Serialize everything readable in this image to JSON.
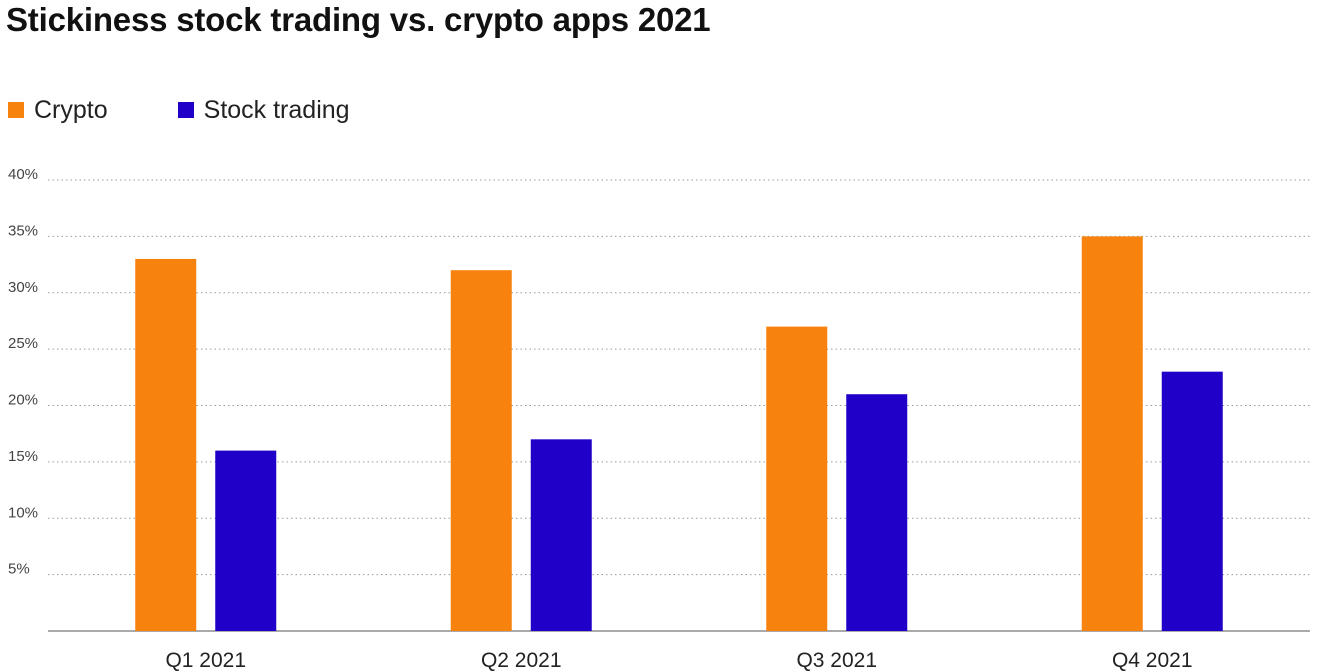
{
  "chart_data": {
    "type": "bar",
    "title": "Stickiness stock trading vs. crypto apps 2021",
    "xlabel": "",
    "ylabel": "",
    "categories": [
      "Q1 2021",
      "Q2 2021",
      "Q3 2021",
      "Q4 2021"
    ],
    "series": [
      {
        "name": "Crypto",
        "color": "#f7820d",
        "values": [
          33,
          32,
          27,
          35
        ]
      },
      {
        "name": "Stock trading",
        "color": "#2000c8",
        "values": [
          16,
          17,
          21,
          23
        ]
      }
    ],
    "ylim": [
      0,
      40
    ],
    "yticks": [
      5,
      10,
      15,
      20,
      25,
      30,
      35,
      40
    ],
    "ytick_labels": [
      "5%",
      "10%",
      "15%",
      "20%",
      "25%",
      "30%",
      "35%",
      "40%"
    ],
    "grid": true,
    "grid_style": "dotted",
    "legend_position": "top-left"
  }
}
